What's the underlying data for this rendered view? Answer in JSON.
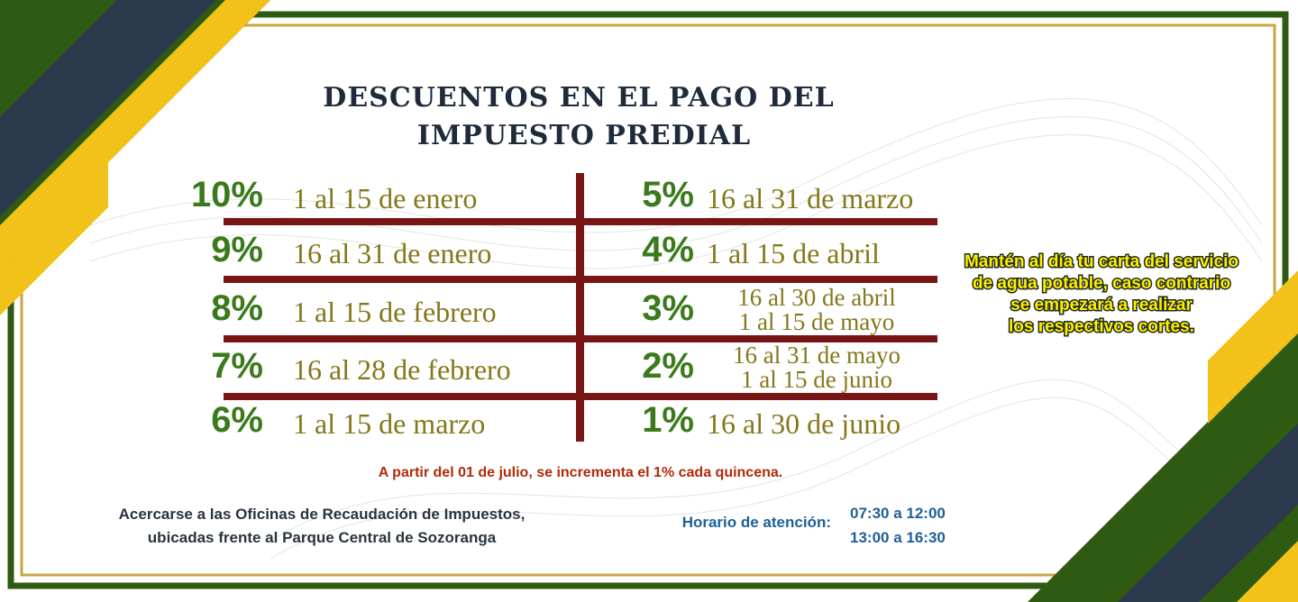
{
  "title": {
    "lines": [
      "DESCUENTOS EN EL PAGO DEL",
      "IMPUESTO PREDIAL"
    ]
  },
  "discounts": {
    "left": [
      {
        "percent": "10%",
        "dates": [
          "1 al 15 de enero"
        ]
      },
      {
        "percent": "9%",
        "dates": [
          "16 al 31 de enero"
        ]
      },
      {
        "percent": "8%",
        "dates": [
          "1 al 15 de febrero"
        ]
      },
      {
        "percent": "7%",
        "dates": [
          "16 al 28 de febrero"
        ]
      },
      {
        "percent": "6%",
        "dates": [
          "1 al 15 de marzo"
        ]
      }
    ],
    "right": [
      {
        "percent": "5%",
        "dates": [
          "16 al 31 de marzo"
        ]
      },
      {
        "percent": "4%",
        "dates": [
          "1 al 15 de abril"
        ]
      },
      {
        "percent": "3%",
        "dates": [
          "16 al 30 de abril",
          "1 al 15 de mayo"
        ]
      },
      {
        "percent": "2%",
        "dates": [
          "16 al 31 de mayo",
          "1 al 15 de junio"
        ]
      },
      {
        "percent": "1%",
        "dates": [
          "16 al 30 de junio"
        ]
      }
    ]
  },
  "notice": {
    "lines": [
      "Mantén al día tu carta del servicio",
      "de agua potable, caso contrario",
      "se empezará a realizar",
      "los respectivos cortes."
    ]
  },
  "increment_note": "A partir del 01 de julio, se incrementa el 1% cada quincena.",
  "offices": {
    "lines": [
      "Acercarse a las Oficinas de Recaudación de Impuestos,",
      "ubicadas frente al Parque Central de Sozoranga"
    ]
  },
  "schedule": {
    "label": "Horario de atención:",
    "times": [
      "07:30 a 12:00",
      "13:00 a 16:30"
    ]
  }
}
